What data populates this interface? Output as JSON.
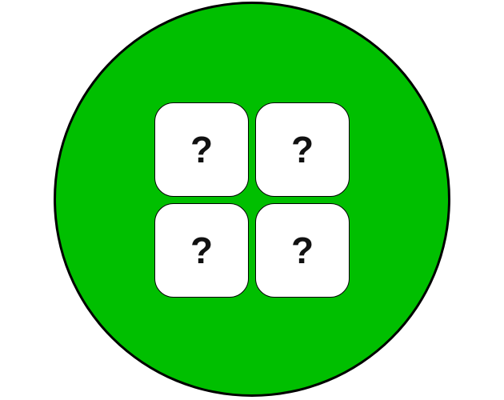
{
  "board": {
    "color": "#00bf00",
    "border_color": "#000000"
  },
  "cards": [
    {
      "label": "?"
    },
    {
      "label": "?"
    },
    {
      "label": "?"
    },
    {
      "label": "?"
    }
  ]
}
